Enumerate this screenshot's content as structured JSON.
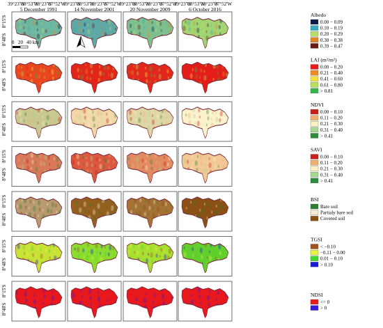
{
  "top_coords": [
    "39°23'W",
    "38°53'W",
    "38°23'W",
    "37°52'W"
  ],
  "left_coords": [
    "8°15'S",
    "8°48'S"
  ],
  "dates": [
    "5 December 1991",
    "14 November 2001",
    "20 November 2009",
    "6 October 2016"
  ],
  "scale_bar": {
    "zero": "0",
    "mid": "20",
    "end": "40 km"
  },
  "north_arrow": "north-arrow-icon",
  "rows": [
    {
      "title": "Albedo",
      "classes": [
        {
          "label": "0.00 − 0.09",
          "color": "#0b1a45"
        },
        {
          "label": "0.10 − 0.19",
          "color": "#38a8c0"
        },
        {
          "label": "0.20 − 0.29",
          "color": "#b6df6a"
        },
        {
          "label": "0.30 − 0.38",
          "color": "#e0852a"
        },
        {
          "label": "0.39 − 0.47",
          "color": "#6a1a10"
        }
      ],
      "tiles": [
        "#6fb7a0",
        "#5ea8a5",
        "#7cc090",
        "#a2d472"
      ]
    },
    {
      "title": "LAI (m²/m²)",
      "classes": [
        {
          "label": "0.00 − 0.20",
          "color": "#e81c1c"
        },
        {
          "label": "0.21 − 0.40",
          "color": "#f08a24"
        },
        {
          "label": "0.41 − 0.60",
          "color": "#f5e040"
        },
        {
          "label": "0.61 − 0.80",
          "color": "#b8e05a"
        },
        {
          "label": "> 0.81",
          "color": "#36b44a"
        }
      ],
      "tiles": [
        "#e8461e",
        "#e2261a",
        "#e2281c",
        "#e31e1a"
      ]
    },
    {
      "title": "NDVI",
      "classes": [
        {
          "label": "0.00 − 0.10",
          "color": "#c8201a"
        },
        {
          "label": "0.11 − 0.20",
          "color": "#f2b070"
        },
        {
          "label": "0.21 − 0.30",
          "color": "#fbf0c0"
        },
        {
          "label": "0.31 − 0.40",
          "color": "#a8d890"
        },
        {
          "label": "> 0.41",
          "color": "#2e8a3c"
        }
      ],
      "tiles": [
        "#c8c890",
        "#f0d8a8",
        "#dfd6a6",
        "#faf2cc"
      ]
    },
    {
      "title": "SAVI",
      "classes": [
        {
          "label": "0.00 − 0.10",
          "color": "#c8201a"
        },
        {
          "label": "0.11 − 0.20",
          "color": "#f2b070"
        },
        {
          "label": "0.21 − 0.30",
          "color": "#fbf0c0"
        },
        {
          "label": "0.31 − 0.40",
          "color": "#a8d890"
        },
        {
          "label": "> 0.41",
          "color": "#2e8a3c"
        }
      ],
      "tiles": [
        "#d87a5a",
        "#dc5840",
        "#e28a62",
        "#f2c896"
      ]
    },
    {
      "title": "BSI",
      "classes": [
        {
          "label": "Bare soil",
          "color": "#2e7d32"
        },
        {
          "label": "Partialy bare soil",
          "color": "#f6ead0"
        },
        {
          "label": "Covered soil",
          "color": "#8a5014"
        }
      ],
      "tiles": [
        "#b89a6e",
        "#94601e",
        "#a47234",
        "#8a5014"
      ]
    },
    {
      "title": "TGSI",
      "classes": [
        {
          "label": "< −0.10",
          "color": "#a0521e"
        },
        {
          "label": "−0.11 − 0.00",
          "color": "#e8f040"
        },
        {
          "label": "0.01 − 0.10",
          "color": "#44d430"
        },
        {
          "label": "> 0.10",
          "color": "#1a1ad8"
        }
      ],
      "tiles": [
        "#c6e234",
        "#8cdc2e",
        "#a8e030",
        "#62d02c"
      ]
    },
    {
      "title": "NDSI",
      "classes": [
        {
          "label": "<= 0",
          "color": "#e81c1c"
        },
        {
          "label": "> 0",
          "color": "#3a1ad8"
        }
      ],
      "tiles": [
        "#e8181c",
        "#e8181c",
        "#e8181c",
        "#e8181c"
      ]
    }
  ]
}
